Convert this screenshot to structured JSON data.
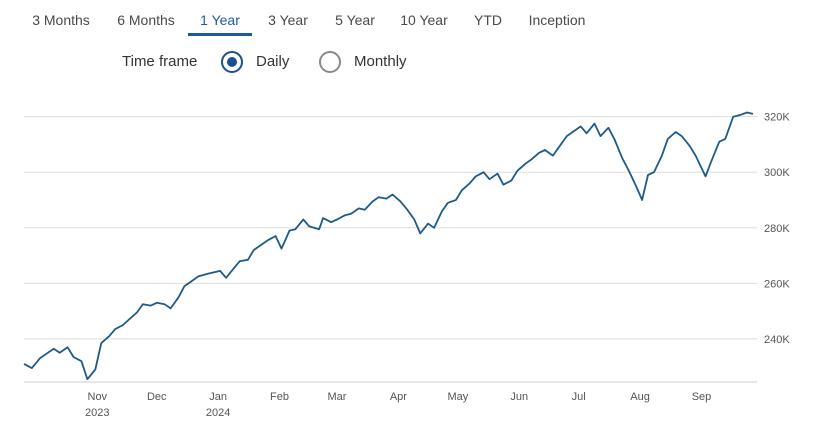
{
  "tabs": [
    {
      "label": "3 Months"
    },
    {
      "label": "6 Months"
    },
    {
      "label": "1 Year",
      "active": true
    },
    {
      "label": "3 Year"
    },
    {
      "label": "5 Year"
    },
    {
      "label": "10 Year"
    },
    {
      "label": "YTD"
    },
    {
      "label": "Inception"
    }
  ],
  "timeframe": {
    "label": "Time frame",
    "options": [
      {
        "label": "Daily",
        "selected": true
      },
      {
        "label": "Monthly",
        "selected": false
      }
    ]
  },
  "colors": {
    "accent": "#1d5aa6",
    "line": "#1f5b86",
    "grid": "#dddddd"
  },
  "chart_data": {
    "type": "line",
    "y_ticks": [
      240000,
      260000,
      280000,
      300000,
      320000
    ],
    "y_tick_labels": [
      "240K",
      "260K",
      "280K",
      "300K",
      "320K"
    ],
    "x_tick_labels": [
      {
        "month": "Nov",
        "year": "2023"
      },
      {
        "month": "Dec",
        "year": ""
      },
      {
        "month": "Jan",
        "year": "2024"
      },
      {
        "month": "Feb",
        "year": ""
      },
      {
        "month": "Mar",
        "year": ""
      },
      {
        "month": "Apr",
        "year": ""
      },
      {
        "month": "May",
        "year": ""
      },
      {
        "month": "Jun",
        "year": ""
      },
      {
        "month": "Jul",
        "year": ""
      },
      {
        "month": "Aug",
        "year": ""
      },
      {
        "month": "Sep",
        "year": ""
      }
    ],
    "ylim": [
      224500,
      326000
    ],
    "grid": true,
    "series": [
      {
        "x": [
          "2023-09-25",
          "2023-09-29",
          "2023-10-03",
          "2023-10-06",
          "2023-10-10",
          "2023-10-13",
          "2023-10-17",
          "2023-10-20",
          "2023-10-24",
          "2023-10-27",
          "2023-10-31",
          "2023-11-03",
          "2023-11-07",
          "2023-11-10",
          "2023-11-14",
          "2023-11-17",
          "2023-11-21",
          "2023-11-24",
          "2023-11-28",
          "2023-12-01",
          "2023-12-05",
          "2023-12-08",
          "2023-12-12",
          "2023-12-15",
          "2023-12-19",
          "2023-12-22",
          "2023-12-27",
          "2024-01-02",
          "2024-01-05",
          "2024-01-09",
          "2024-01-12",
          "2024-01-16",
          "2024-01-19",
          "2024-01-23",
          "2024-01-26",
          "2024-01-30",
          "2024-02-02",
          "2024-02-06",
          "2024-02-09",
          "2024-02-13",
          "2024-02-16",
          "2024-02-21",
          "2024-02-23",
          "2024-02-27",
          "2024-03-01",
          "2024-03-05",
          "2024-03-08",
          "2024-03-12",
          "2024-03-15",
          "2024-03-19",
          "2024-03-22",
          "2024-03-26",
          "2024-03-29",
          "2024-04-02",
          "2024-04-05",
          "2024-04-09",
          "2024-04-12",
          "2024-04-16",
          "2024-04-19",
          "2024-04-23",
          "2024-04-26",
          "2024-04-30",
          "2024-05-03",
          "2024-05-07",
          "2024-05-10",
          "2024-05-14",
          "2024-05-17",
          "2024-05-21",
          "2024-05-24",
          "2024-05-28",
          "2024-05-31",
          "2024-06-04",
          "2024-06-07",
          "2024-06-11",
          "2024-06-14",
          "2024-06-18",
          "2024-06-21",
          "2024-06-25",
          "2024-06-28",
          "2024-07-02",
          "2024-07-05",
          "2024-07-09",
          "2024-07-12",
          "2024-07-16",
          "2024-07-19",
          "2024-07-23",
          "2024-07-26",
          "2024-07-30",
          "2024-08-02",
          "2024-08-05",
          "2024-08-08",
          "2024-08-12",
          "2024-08-15",
          "2024-08-19",
          "2024-08-22",
          "2024-08-26",
          "2024-08-29",
          "2024-09-03",
          "2024-09-06",
          "2024-09-10",
          "2024-09-13",
          "2024-09-17",
          "2024-09-20",
          "2024-09-24",
          "2024-09-27"
        ],
        "values": [
          231000,
          229500,
          233000,
          234500,
          236500,
          235000,
          237000,
          233500,
          232000,
          225500,
          229000,
          238500,
          241000,
          243500,
          245000,
          247000,
          249500,
          252500,
          252000,
          253000,
          252500,
          251000,
          255000,
          259000,
          261000,
          262500,
          263500,
          264500,
          262000,
          265500,
          268000,
          268500,
          272000,
          274000,
          275500,
          277000,
          272500,
          279000,
          279500,
          283000,
          280500,
          279500,
          283500,
          282000,
          283000,
          284500,
          285000,
          287000,
          286500,
          289500,
          291000,
          290500,
          292000,
          289500,
          287000,
          283000,
          278000,
          281500,
          280000,
          286000,
          289000,
          290000,
          293500,
          296000,
          298500,
          300000,
          297500,
          299500,
          295500,
          297000,
          300500,
          303000,
          304500,
          307000,
          308000,
          306000,
          309000,
          313000,
          314500,
          316500,
          314000,
          317500,
          313000,
          316000,
          312000,
          305000,
          301000,
          295000,
          290000,
          299000,
          300000,
          306000,
          312000,
          314500,
          313000,
          309500,
          306000,
          298500,
          304000,
          311000,
          312000,
          320000,
          320500,
          321500,
          321000
        ]
      }
    ]
  }
}
